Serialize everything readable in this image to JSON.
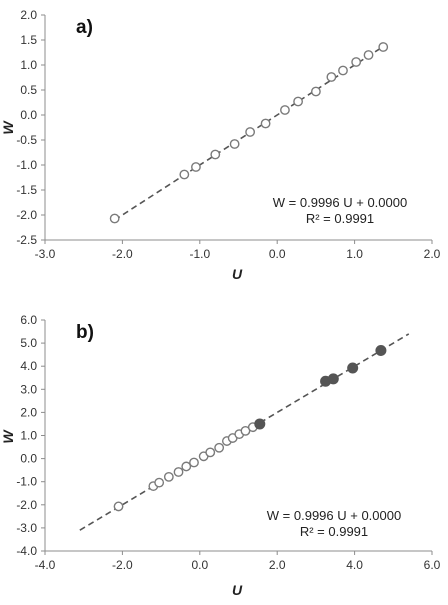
{
  "chart_data": [
    {
      "type": "scatter",
      "panel_label": "a)",
      "xlabel": "U",
      "ylabel": "W",
      "xlim": [
        -3.0,
        2.0
      ],
      "ylim": [
        -2.5,
        2.0
      ],
      "x_ticks": [
        "-3.0",
        "-2.0",
        "-1.0",
        "0.0",
        "1.0",
        "2.0"
      ],
      "y_ticks": [
        "-2.5",
        "-2.0",
        "-1.5",
        "-1.0",
        "-0.5",
        "0.0",
        "0.5",
        "1.0",
        "1.5",
        "2.0"
      ],
      "grid": false,
      "fit_line": {
        "slope": 0.9996,
        "intercept": 0.0,
        "x_range": [
          -2.1,
          1.4
        ],
        "style": "dashed"
      },
      "equation_line1": "W = 0.9996 U + 0.0000",
      "equation_line2": "R² = 0.9991",
      "series": [
        {
          "marker": "open-circle",
          "color": "#7a7a7a",
          "points": [
            [
              -2.1,
              -2.07
            ],
            [
              -1.2,
              -1.19
            ],
            [
              -1.05,
              -1.04
            ],
            [
              -0.8,
              -0.79
            ],
            [
              -0.55,
              -0.58
            ],
            [
              -0.35,
              -0.34
            ],
            [
              -0.15,
              -0.17
            ],
            [
              0.1,
              0.1
            ],
            [
              0.27,
              0.27
            ],
            [
              0.5,
              0.47
            ],
            [
              0.7,
              0.76
            ],
            [
              0.85,
              0.89
            ],
            [
              1.02,
              1.06
            ],
            [
              1.18,
              1.2
            ],
            [
              1.37,
              1.36
            ]
          ]
        }
      ]
    },
    {
      "type": "scatter",
      "panel_label": "b)",
      "xlabel": "U",
      "ylabel": "W",
      "xlim": [
        -4.0,
        6.0
      ],
      "ylim": [
        -4.0,
        6.0
      ],
      "x_ticks": [
        "-4.0",
        "-2.0",
        "0.0",
        "2.0",
        "4.0",
        "6.0"
      ],
      "y_ticks": [
        "-4.0",
        "-3.0",
        "-2.0",
        "-1.0",
        "0.0",
        "1.0",
        "2.0",
        "3.0",
        "4.0",
        "5.0",
        "6.0"
      ],
      "grid": false,
      "fit_line": {
        "slope": 0.9996,
        "intercept": 0.0,
        "x_range": [
          -3.1,
          5.4
        ],
        "style": "dashed"
      },
      "equation_line1": "W = 0.9996 U + 0.0000",
      "equation_line2": "R² = 0.9991",
      "series": [
        {
          "marker": "open-circle",
          "color": "#7a7a7a",
          "points": [
            [
              -2.1,
              -2.07
            ],
            [
              -1.2,
              -1.19
            ],
            [
              -1.05,
              -1.04
            ],
            [
              -0.8,
              -0.79
            ],
            [
              -0.55,
              -0.58
            ],
            [
              -0.35,
              -0.34
            ],
            [
              -0.15,
              -0.17
            ],
            [
              0.1,
              0.1
            ],
            [
              0.27,
              0.27
            ],
            [
              0.5,
              0.47
            ],
            [
              0.7,
              0.76
            ],
            [
              0.85,
              0.89
            ],
            [
              1.02,
              1.06
            ],
            [
              1.18,
              1.2
            ],
            [
              1.37,
              1.36
            ]
          ]
        },
        {
          "marker": "filled-circle",
          "color": "#555555",
          "points": [
            [
              1.55,
              1.5
            ],
            [
              3.25,
              3.35
            ],
            [
              3.45,
              3.45
            ],
            [
              3.95,
              3.92
            ],
            [
              4.68,
              4.68
            ]
          ]
        }
      ]
    }
  ]
}
